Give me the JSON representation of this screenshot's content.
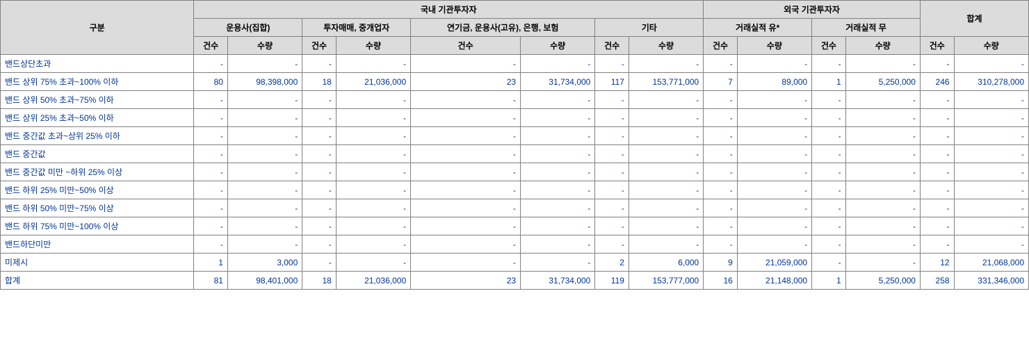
{
  "headers": {
    "category": "구분",
    "domestic": "국내 기관투자자",
    "foreign": "외국 기관투자자",
    "total": "합계",
    "mgmt": "운용사(집합)",
    "broker": "투자매매, 중개업자",
    "pension": "연기금, 운용사(고유), 은행, 보험",
    "other": "기타",
    "trade_yes": "거래실적 유*",
    "trade_no": "거래실적 무",
    "count": "건수",
    "quantity": "수량"
  },
  "rows": [
    {
      "label": "밴드상단초과",
      "v": [
        "-",
        "-",
        "-",
        "-",
        "-",
        "-",
        "-",
        "-",
        "-",
        "-",
        "-",
        "-",
        "-",
        "-"
      ]
    },
    {
      "label": "밴드 상위 75% 초과~100% 이하",
      "v": [
        "80",
        "98,398,000",
        "18",
        "21,036,000",
        "23",
        "31,734,000",
        "117",
        "153,771,000",
        "7",
        "89,000",
        "1",
        "5,250,000",
        "246",
        "310,278,000"
      ]
    },
    {
      "label": "밴드 상위 50% 초과~75% 이하",
      "v": [
        "-",
        "-",
        "-",
        "-",
        "-",
        "-",
        "-",
        "-",
        "-",
        "-",
        "-",
        "-",
        "-",
        "-"
      ]
    },
    {
      "label": "밴드 상위 25% 초과~50% 이하",
      "v": [
        "-",
        "-",
        "-",
        "-",
        "-",
        "-",
        "-",
        "-",
        "-",
        "-",
        "-",
        "-",
        "-",
        "-"
      ]
    },
    {
      "label": "밴드 중간값 초과~상위 25% 이하",
      "v": [
        "-",
        "-",
        "-",
        "-",
        "-",
        "-",
        "-",
        "-",
        "-",
        "-",
        "-",
        "-",
        "-",
        "-"
      ]
    },
    {
      "label": "밴드 중간값",
      "v": [
        "-",
        "-",
        "-",
        "-",
        "-",
        "-",
        "-",
        "-",
        "-",
        "-",
        "-",
        "-",
        "-",
        "-"
      ]
    },
    {
      "label": "밴드 중간값 미만 ~하위 25% 이상",
      "v": [
        "-",
        "-",
        "-",
        "-",
        "-",
        "-",
        "-",
        "-",
        "-",
        "-",
        "-",
        "-",
        "-",
        "-"
      ]
    },
    {
      "label": "밴드 하위 25% 미만~50% 이상",
      "v": [
        "-",
        "-",
        "-",
        "-",
        "-",
        "-",
        "-",
        "-",
        "-",
        "-",
        "-",
        "-",
        "-",
        "-"
      ]
    },
    {
      "label": "밴드 하위 50% 미만~75% 이상",
      "v": [
        "-",
        "-",
        "-",
        "-",
        "-",
        "-",
        "-",
        "-",
        "-",
        "-",
        "-",
        "-",
        "-",
        "-"
      ]
    },
    {
      "label": "밴드 하위 75% 미만~100% 이상",
      "v": [
        "-",
        "-",
        "-",
        "-",
        "-",
        "-",
        "-",
        "-",
        "-",
        "-",
        "-",
        "-",
        "-",
        "-"
      ]
    },
    {
      "label": "밴드하단미만",
      "v": [
        "-",
        "-",
        "-",
        "-",
        "-",
        "-",
        "-",
        "-",
        "-",
        "-",
        "-",
        "-",
        "-",
        "-"
      ]
    },
    {
      "label": "미제시",
      "v": [
        "1",
        "3,000",
        "-",
        "-",
        "-",
        "-",
        "2",
        "6,000",
        "9",
        "21,059,000",
        "-",
        "-",
        "12",
        "21,068,000"
      ]
    },
    {
      "label": "합계",
      "v": [
        "81",
        "98,401,000",
        "18",
        "21,036,000",
        "23",
        "31,734,000",
        "119",
        "153,777,000",
        "16",
        "21,148,000",
        "1",
        "5,250,000",
        "258",
        "331,346,000"
      ]
    }
  ],
  "styling": {
    "header_bg": "#dcdcdc",
    "border_color": "#808080",
    "text_color": "#003399",
    "header_text_color": "#000000",
    "cell_bg": "#ffffff",
    "font_size": 12
  }
}
